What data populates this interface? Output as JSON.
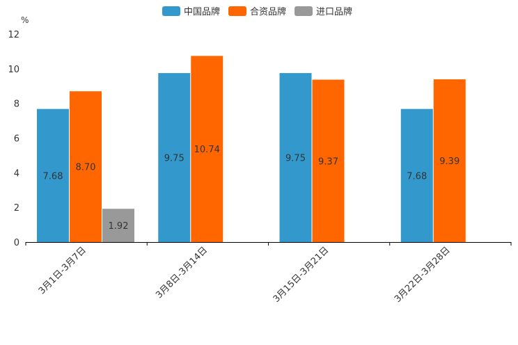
{
  "chart_data": {
    "type": "bar",
    "title": "",
    "xlabel": "",
    "ylabel": "%",
    "ylim": [
      0,
      12
    ],
    "yticks": [
      0,
      2,
      4,
      6,
      8,
      10,
      12
    ],
    "categories": [
      "3月1日-3月7日",
      "3月8日-3月14日",
      "3月15日-3月21日",
      "3月22日-3月28日"
    ],
    "series": [
      {
        "name": "中国品牌",
        "color": "#3399CC",
        "values": [
          7.68,
          9.75,
          9.75,
          7.68
        ]
      },
      {
        "name": "合资品牌",
        "color": "#FF6600",
        "values": [
          8.7,
          10.74,
          9.37,
          9.39
        ]
      },
      {
        "name": "进口品牌",
        "color": "#999999",
        "values": [
          1.92,
          null,
          null,
          null
        ]
      }
    ],
    "legend": "top-center",
    "grid": false
  }
}
